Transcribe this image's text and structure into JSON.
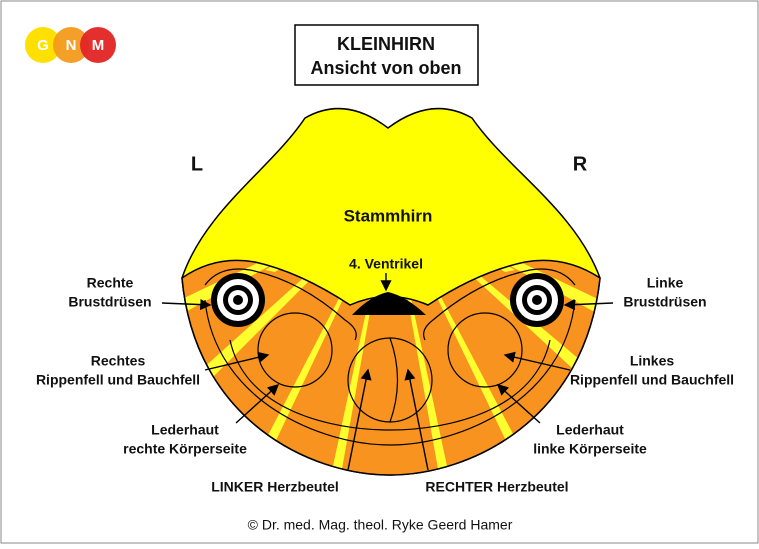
{
  "logo": {
    "letters": [
      "G",
      "N",
      "M"
    ]
  },
  "header": {
    "title": "KLEINHIRN",
    "subtitle": "Ansicht von oben"
  },
  "sides": {
    "left": "L",
    "right": "R"
  },
  "regions": {
    "brainstem": "Stammhirn",
    "ventricle": "4. Ventrikel"
  },
  "labels": [
    {
      "lines": [
        "Rechte",
        "Brustdrüsen"
      ]
    },
    {
      "lines": [
        "Linke",
        "Brustdrüsen"
      ]
    },
    {
      "lines": [
        "Rechtes",
        "Rippenfell und Bauchfell"
      ]
    },
    {
      "lines": [
        "Linkes",
        "Rippenfell und Bauchfell"
      ]
    },
    {
      "lines": [
        "Lederhaut",
        "rechte Körperseite"
      ]
    },
    {
      "lines": [
        "Lederhaut",
        "linke Körperseite"
      ]
    },
    {
      "lines": [
        "LINKER Herzbeutel"
      ]
    },
    {
      "lines": [
        "RECHTER Herzbeutel"
      ]
    }
  ],
  "footer": {
    "copyright": "© Dr. med. Mag. theol. Ryke Geerd Hamer"
  }
}
